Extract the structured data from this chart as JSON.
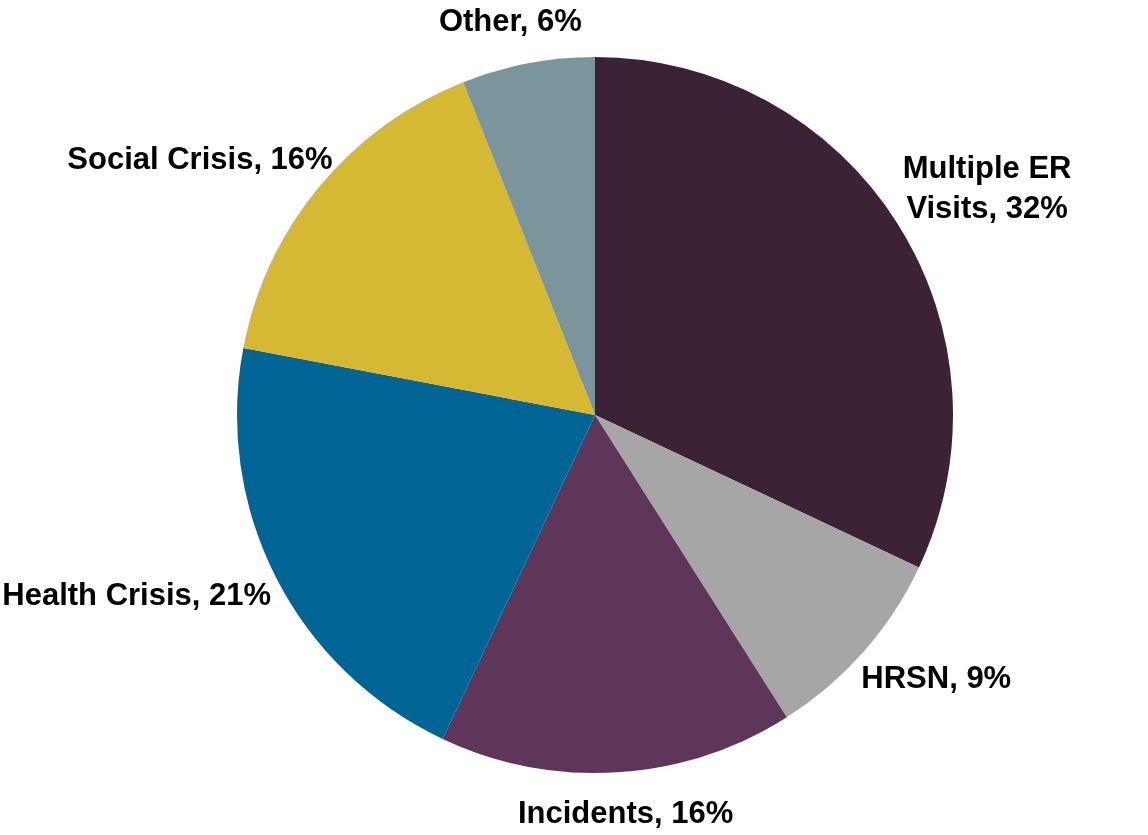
{
  "chart_data": {
    "type": "pie",
    "categories": [
      "Multiple ER Visits",
      "HRSN",
      "Incidents",
      "Health Crisis",
      "Social Crisis",
      "Other"
    ],
    "values": [
      32,
      9,
      16,
      21,
      16,
      6
    ],
    "value_labels": [
      "32%",
      "9%",
      "16%",
      "21%",
      "16%",
      "6%"
    ],
    "colors": [
      "#3b2335",
      "#a6a6a6",
      "#5e3659",
      "#006494",
      "#d5b935",
      "#7a959c"
    ],
    "legend": false
  }
}
